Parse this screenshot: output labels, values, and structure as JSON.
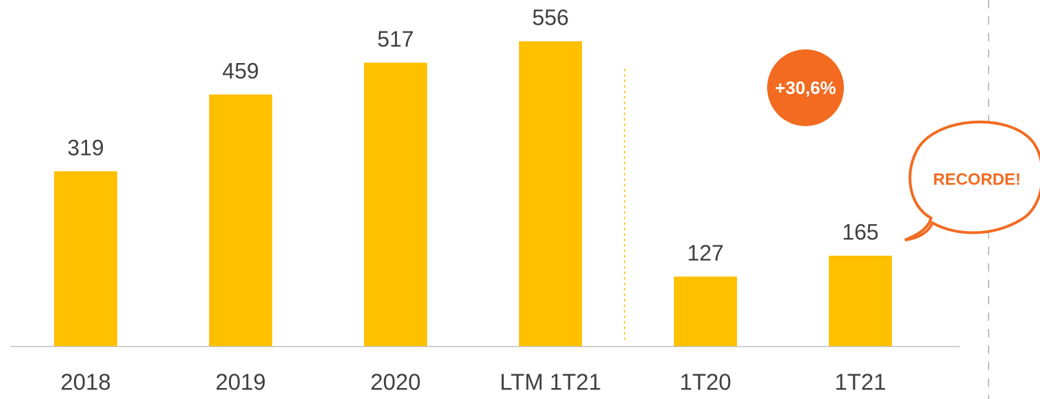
{
  "chart_data": {
    "type": "bar",
    "categories": [
      "2018",
      "2019",
      "2020",
      "LTM 1T21",
      "1T20",
      "1T21"
    ],
    "values": [
      319,
      459,
      517,
      556,
      127,
      165
    ],
    "color": "#FFC000",
    "annotations": [
      "+30,6%",
      "RECORDE!"
    ]
  }
}
